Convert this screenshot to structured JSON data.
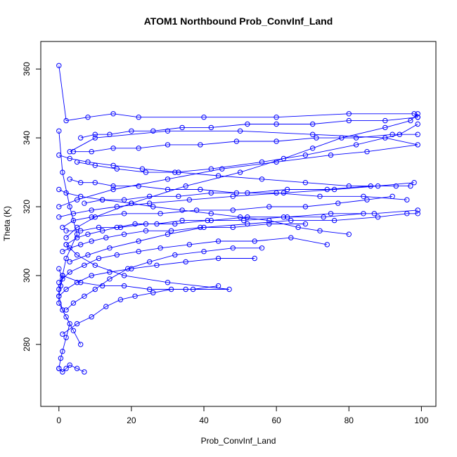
{
  "chart_data": {
    "type": "line",
    "title": "ATOM1 Northbound Prob_ConvInf_Land",
    "xlabel": "Prob_ConvInf_Land",
    "ylabel": "Theta (K)",
    "xlim": [
      -5,
      104
    ],
    "ylim": [
      262,
      368
    ],
    "xticks": [
      0,
      20,
      40,
      60,
      80,
      100
    ],
    "yticks": [
      280,
      300,
      320,
      340,
      360
    ],
    "grid": false,
    "legend": "none",
    "color": "#0000ff",
    "marker": "open-circle",
    "series": [
      {
        "x": [
          0,
          2,
          8,
          15,
          22,
          40,
          60,
          80,
          98,
          99
        ],
        "y": [
          361,
          345,
          346,
          347,
          346,
          346,
          346,
          347,
          347,
          346
        ]
      },
      {
        "x": [
          0,
          1,
          3,
          5,
          2,
          1,
          0,
          0,
          2,
          4,
          6
        ],
        "y": [
          342,
          330,
          320,
          312,
          305,
          300,
          296,
          292,
          288,
          284,
          280
        ]
      },
      {
        "x": [
          0,
          0.5,
          1,
          2,
          3,
          1,
          0,
          0.5,
          1,
          0
        ],
        "y": [
          273,
          276,
          278,
          282,
          286,
          290,
          294,
          297,
          299,
          302
        ]
      },
      {
        "x": [
          1,
          6,
          12,
          18,
          25,
          35,
          47,
          30,
          18,
          10,
          5,
          2
        ],
        "y": [
          300,
          298,
          297,
          297,
          296,
          296,
          296,
          298,
          300,
          303,
          306,
          309
        ]
      },
      {
        "x": [
          2,
          5,
          10,
          20,
          35,
          50,
          62,
          70,
          78,
          90,
          97,
          99
        ],
        "y": [
          311,
          314,
          317,
          321,
          326,
          330,
          334,
          337,
          340,
          343,
          345,
          347
        ]
      },
      {
        "x": [
          0,
          5,
          15,
          30,
          45,
          60,
          75,
          85,
          99,
          90,
          70,
          50,
          30,
          10,
          3
        ],
        "y": [
          320,
          322,
          325,
          328,
          331,
          333,
          335,
          336,
          338,
          340,
          341,
          342,
          342,
          340,
          336
        ]
      },
      {
        "x": [
          3,
          8,
          14,
          22,
          30,
          40,
          52,
          64,
          76,
          88,
          96,
          99
        ],
        "y": [
          304,
          306,
          308,
          310,
          312,
          314,
          315,
          316,
          316,
          317,
          318,
          318
        ]
      },
      {
        "x": [
          1,
          4,
          9,
          18,
          28,
          38,
          48,
          58,
          68,
          77,
          85,
          92
        ],
        "y": [
          314,
          316,
          317,
          318,
          318,
          319,
          319,
          320,
          320,
          321,
          322,
          323
        ]
      },
      {
        "x": [
          0,
          2,
          6,
          12,
          20,
          26,
          34,
          42,
          50,
          58,
          66,
          72,
          80
        ],
        "y": [
          325,
          324,
          323,
          322,
          321,
          320,
          319,
          318,
          317,
          316,
          314,
          313,
          312
        ]
      },
      {
        "x": [
          5,
          10,
          16,
          24,
          32,
          42,
          56,
          68,
          82,
          94,
          99
        ],
        "y": [
          333,
          332,
          331,
          330,
          330,
          331,
          333,
          335,
          338,
          341,
          344
        ]
      },
      {
        "x": [
          0,
          3,
          7,
          11,
          16,
          22,
          28,
          36,
          44,
          54,
          64,
          74
        ],
        "y": [
          298,
          301,
          303,
          305,
          306,
          307,
          308,
          309,
          310,
          310,
          311,
          309
        ]
      },
      {
        "x": [
          2,
          4,
          7,
          10,
          14,
          19,
          25,
          32,
          40,
          48,
          56
        ],
        "y": [
          290,
          292,
          294,
          296,
          299,
          302,
          304,
          306,
          307,
          308,
          308
        ]
      },
      {
        "x": [
          6,
          10,
          14,
          20,
          26,
          34,
          42,
          52,
          60,
          70,
          80,
          90,
          99
        ],
        "y": [
          340,
          341,
          341,
          342,
          342,
          343,
          343,
          344,
          344,
          344,
          345,
          345,
          346
        ]
      },
      {
        "x": [
          0,
          3,
          8,
          15,
          23,
          33,
          44,
          56,
          68,
          80,
          93
        ],
        "y": [
          335,
          334,
          333,
          332,
          331,
          330,
          329,
          328,
          327,
          326,
          326
        ]
      },
      {
        "x": [
          1,
          5,
          9,
          13,
          17,
          21,
          26,
          31,
          37,
          44
        ],
        "y": [
          283,
          286,
          288,
          291,
          293,
          294,
          295,
          296,
          296,
          297
        ]
      },
      {
        "x": [
          0,
          4,
          9,
          16,
          25,
          36,
          48,
          62,
          76,
          88,
          98
        ],
        "y": [
          317,
          318,
          319,
          320,
          321,
          322,
          323,
          324,
          325,
          326,
          327
        ]
      },
      {
        "x": [
          2,
          5,
          8,
          12,
          16,
          21,
          27,
          34,
          42,
          52,
          63,
          75,
          87,
          99
        ],
        "y": [
          309,
          311,
          312,
          313,
          314,
          315,
          315,
          316,
          316,
          317,
          317,
          318,
          318,
          319
        ]
      },
      {
        "x": [
          0,
          1,
          2,
          3,
          5,
          7
        ],
        "y": [
          273,
          272,
          273,
          274,
          273,
          272
        ]
      },
      {
        "x": [
          3,
          6,
          10,
          15,
          22,
          30,
          39,
          49,
          60,
          72,
          84,
          96
        ],
        "y": [
          328,
          327,
          327,
          326,
          326,
          325,
          325,
          324,
          324,
          323,
          323,
          322
        ]
      },
      {
        "x": [
          1,
          3,
          6,
          9,
          13,
          18,
          24,
          31,
          39,
          48,
          58,
          68
        ],
        "y": [
          307,
          308,
          309,
          310,
          311,
          312,
          313,
          313,
          314,
          314,
          315,
          315
        ]
      },
      {
        "x": [
          4,
          9,
          15,
          22,
          30,
          39,
          49,
          60,
          71,
          82,
          92,
          99
        ],
        "y": [
          336,
          336,
          337,
          337,
          338,
          338,
          339,
          339,
          340,
          340,
          341,
          341
        ]
      },
      {
        "x": [
          0,
          2,
          5,
          9,
          14,
          20,
          27,
          35,
          44,
          54
        ],
        "y": [
          294,
          296,
          298,
          300,
          301,
          302,
          303,
          304,
          305,
          305
        ]
      },
      {
        "x": [
          7,
          12,
          18,
          25,
          33,
          42,
          52,
          63,
          74,
          86,
          97
        ],
        "y": [
          321,
          322,
          322,
          323,
          323,
          324,
          324,
          325,
          325,
          326,
          326
        ]
      },
      {
        "x": [
          2,
          6,
          11,
          17,
          24,
          32,
          41,
          51,
          62,
          73,
          84
        ],
        "y": [
          313,
          313,
          314,
          314,
          315,
          315,
          316,
          316,
          317,
          317,
          318
        ]
      }
    ]
  }
}
